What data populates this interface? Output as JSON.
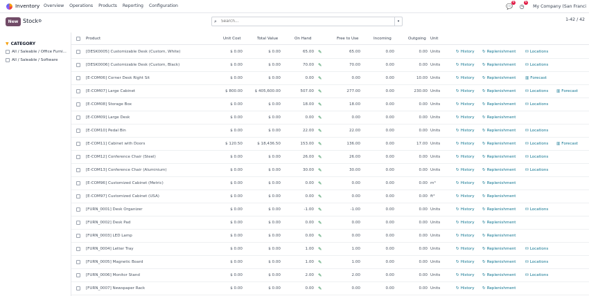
{
  "navbar": {
    "app_name": "Inventory",
    "menu": [
      "Overview",
      "Operations",
      "Products",
      "Reporting",
      "Configuration"
    ],
    "activity_badge": "6",
    "messages_badge": "6",
    "company": "My Company (San Franci"
  },
  "control": {
    "new_label": "New",
    "breadcrumb": "Stock",
    "search_placeholder": "Search...",
    "pager": "1-42 / 42"
  },
  "sidebar": {
    "title": "CATEGORY",
    "items": [
      "All / Saleable / Office Furni...",
      "All / Saleable / Software"
    ]
  },
  "table": {
    "headers": [
      "Product",
      "Unit Cost",
      "Total Value",
      "On Hand",
      "Free to Use",
      "Incoming",
      "Outgoing",
      "Unit"
    ],
    "action_labels": {
      "history": "History",
      "replenishment": "Replenishment",
      "locations": "Locations",
      "forecast": "Forecast"
    },
    "rows": [
      {
        "product": "[DESK0005] Customizable Desk (Custom, White)",
        "cost": "$ 0.00",
        "value": "$ 0.00",
        "onhand": "65.00",
        "free": "65.00",
        "incoming": "0.00",
        "outgoing": "0.00",
        "unit": "Units",
        "a1": "Locations",
        "a2": ""
      },
      {
        "product": "[DESK0006] Customizable Desk (Custom, Black)",
        "cost": "$ 0.00",
        "value": "$ 0.00",
        "onhand": "70.00",
        "free": "70.00",
        "incoming": "0.00",
        "outgoing": "0.00",
        "unit": "Units",
        "a1": "Locations",
        "a2": ""
      },
      {
        "product": "[E-COM06] Corner Desk Right Sit",
        "cost": "$ 0.00",
        "value": "$ 0.00",
        "onhand": "0.00",
        "free": "0.00",
        "incoming": "0.00",
        "outgoing": "10.00",
        "unit": "Units",
        "a1": "Forecast",
        "a2": ""
      },
      {
        "product": "[E-COM07] Large Cabinet",
        "cost": "$ 800.00",
        "value": "$ 405,600.00",
        "onhand": "507.00",
        "free": "277.00",
        "incoming": "0.00",
        "outgoing": "230.00",
        "unit": "Units",
        "a1": "Locations",
        "a2": "Forecast"
      },
      {
        "product": "[E-COM08] Storage Box",
        "cost": "$ 0.00",
        "value": "$ 0.00",
        "onhand": "18.00",
        "free": "18.00",
        "incoming": "0.00",
        "outgoing": "0.00",
        "unit": "Units",
        "a1": "Locations",
        "a2": ""
      },
      {
        "product": "[E-COM09] Large Desk",
        "cost": "$ 0.00",
        "value": "$ 0.00",
        "onhand": "0.00",
        "free": "0.00",
        "incoming": "0.00",
        "outgoing": "0.00",
        "unit": "Units",
        "a1": "",
        "a2": ""
      },
      {
        "product": "[E-COM10] Pedal Bin",
        "cost": "$ 0.00",
        "value": "$ 0.00",
        "onhand": "22.00",
        "free": "22.00",
        "incoming": "0.00",
        "outgoing": "0.00",
        "unit": "Units",
        "a1": "Locations",
        "a2": ""
      },
      {
        "product": "[E-COM11] Cabinet with Doors",
        "cost": "$ 120.50",
        "value": "$ 18,436.50",
        "onhand": "153.00",
        "free": "136.00",
        "incoming": "0.00",
        "outgoing": "17.00",
        "unit": "Units",
        "a1": "Locations",
        "a2": "Forecast"
      },
      {
        "product": "[E-COM12] Conference Chair (Steel)",
        "cost": "$ 0.00",
        "value": "$ 0.00",
        "onhand": "26.00",
        "free": "26.00",
        "incoming": "0.00",
        "outgoing": "0.00",
        "unit": "Units",
        "a1": "Locations",
        "a2": ""
      },
      {
        "product": "[E-COM13] Conference Chair (Aluminium)",
        "cost": "$ 0.00",
        "value": "$ 0.00",
        "onhand": "30.00",
        "free": "30.00",
        "incoming": "0.00",
        "outgoing": "0.00",
        "unit": "Units",
        "a1": "Locations",
        "a2": ""
      },
      {
        "product": "[E-COM96] Customized Cabinet (Metric)",
        "cost": "$ 0.00",
        "value": "$ 0.00",
        "onhand": "0.00",
        "free": "0.00",
        "incoming": "0.00",
        "outgoing": "0.00",
        "unit": "m³",
        "a1": "",
        "a2": ""
      },
      {
        "product": "[E-COM97] Customized Cabinet (USA)",
        "cost": "$ 0.00",
        "value": "$ 0.00",
        "onhand": "0.00",
        "free": "0.00",
        "incoming": "0.00",
        "outgoing": "0.00",
        "unit": "ft³",
        "a1": "",
        "a2": ""
      },
      {
        "product": "[FURN_0001] Desk Organizer",
        "cost": "$ 0.00",
        "value": "$ 0.00",
        "onhand": "-1.00",
        "free": "-1.00",
        "incoming": "0.00",
        "outgoing": "0.00",
        "unit": "Units",
        "a1": "Locations",
        "a2": ""
      },
      {
        "product": "[FURN_0002] Desk Pad",
        "cost": "$ 0.00",
        "value": "$ 0.00",
        "onhand": "0.00",
        "free": "0.00",
        "incoming": "0.00",
        "outgoing": "0.00",
        "unit": "Units",
        "a1": "",
        "a2": ""
      },
      {
        "product": "[FURN_0003] LED Lamp",
        "cost": "$ 0.00",
        "value": "$ 0.00",
        "onhand": "0.00",
        "free": "0.00",
        "incoming": "0.00",
        "outgoing": "0.00",
        "unit": "Units",
        "a1": "",
        "a2": ""
      },
      {
        "product": "[FURN_0004] Letter Tray",
        "cost": "$ 0.00",
        "value": "$ 0.00",
        "onhand": "1.00",
        "free": "1.00",
        "incoming": "0.00",
        "outgoing": "0.00",
        "unit": "Units",
        "a1": "Locations",
        "a2": ""
      },
      {
        "product": "[FURN_0005] Magnetic Board",
        "cost": "$ 0.00",
        "value": "$ 0.00",
        "onhand": "1.00",
        "free": "1.00",
        "incoming": "0.00",
        "outgoing": "0.00",
        "unit": "Units",
        "a1": "Locations",
        "a2": ""
      },
      {
        "product": "[FURN_0006] Monitor Stand",
        "cost": "$ 0.00",
        "value": "$ 0.00",
        "onhand": "2.00",
        "free": "2.00",
        "incoming": "0.00",
        "outgoing": "0.00",
        "unit": "Units",
        "a1": "Locations",
        "a2": ""
      },
      {
        "product": "[FURN_0007] Newspaper Rack",
        "cost": "$ 0.00",
        "value": "$ 0.00",
        "onhand": "0.00",
        "free": "0.00",
        "incoming": "0.00",
        "outgoing": "0.00",
        "unit": "Units",
        "a1": "",
        "a2": ""
      }
    ]
  }
}
